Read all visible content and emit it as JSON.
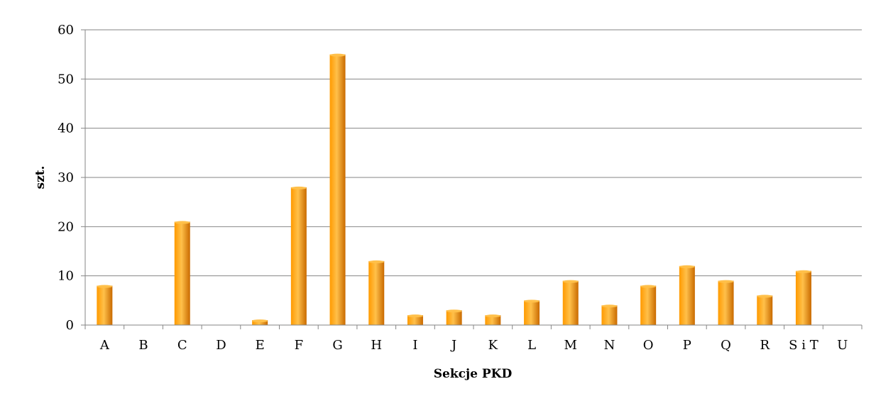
{
  "chart_data": {
    "type": "bar",
    "xlabel": "Sekcje PKD",
    "ylabel": "szt.",
    "ylim": [
      0,
      60
    ],
    "yticks": [
      0,
      10,
      20,
      30,
      40,
      50,
      60
    ],
    "grid": true,
    "legend": "none",
    "categories": [
      "A",
      "B",
      "C",
      "D",
      "E",
      "F",
      "G",
      "H",
      "I",
      "J",
      "K",
      "L",
      "M",
      "N",
      "O",
      "P",
      "Q",
      "R",
      "S i T",
      "U"
    ],
    "values": [
      8,
      0,
      21,
      0,
      1,
      28,
      55,
      13,
      2,
      3,
      2,
      5,
      9,
      4,
      8,
      12,
      9,
      6,
      11,
      0
    ],
    "colors": {
      "bar_light": "#ffc04a",
      "bar_mid": "#ff9a00",
      "bar_dark": "#c96a00",
      "grid": "#868686",
      "axis": "#868686"
    }
  }
}
